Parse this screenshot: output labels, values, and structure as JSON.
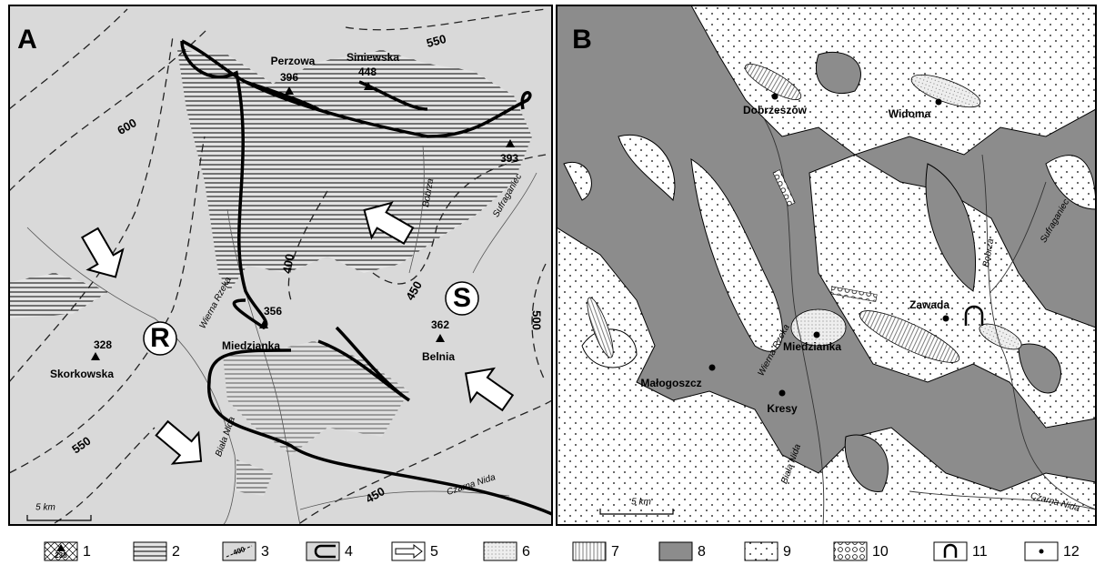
{
  "panel_a": {
    "label": "A",
    "places": [
      "Perzowa",
      "Siniewska",
      "Miedzianka",
      "Belnia",
      "Skorkowska"
    ],
    "heights": [
      396,
      448,
      393,
      356,
      362,
      328
    ],
    "contours": [
      600,
      550,
      400,
      450,
      500,
      550,
      450
    ],
    "rivers": [
      "Bobrza",
      "Sufraganiec",
      "Wierna Rzeka",
      "Biała Nida",
      "Czarna Nida"
    ],
    "areas": [
      "R",
      "S"
    ],
    "scale": "5 km"
  },
  "panel_b": {
    "label": "B",
    "places": [
      "Dobrzeszów",
      "Widoma",
      "Zawada",
      "Miedzianka",
      "Małogoszcz",
      "Kresy"
    ],
    "rivers": [
      "Bobrza",
      "Sufraganiec",
      "Wierna Rzeka",
      "Biała Nida",
      "Czarna Nida"
    ],
    "scale": "5 km"
  },
  "legend": [
    {
      "number": 1,
      "symbol_text": 238
    },
    {
      "number": 2
    },
    {
      "number": 3,
      "symbol_text": 400
    },
    {
      "number": 4
    },
    {
      "number": 5
    },
    {
      "number": 6
    },
    {
      "number": 7
    },
    {
      "number": 8
    },
    {
      "number": 9
    },
    {
      "number": 10
    },
    {
      "number": 11
    },
    {
      "number": 12
    }
  ]
}
